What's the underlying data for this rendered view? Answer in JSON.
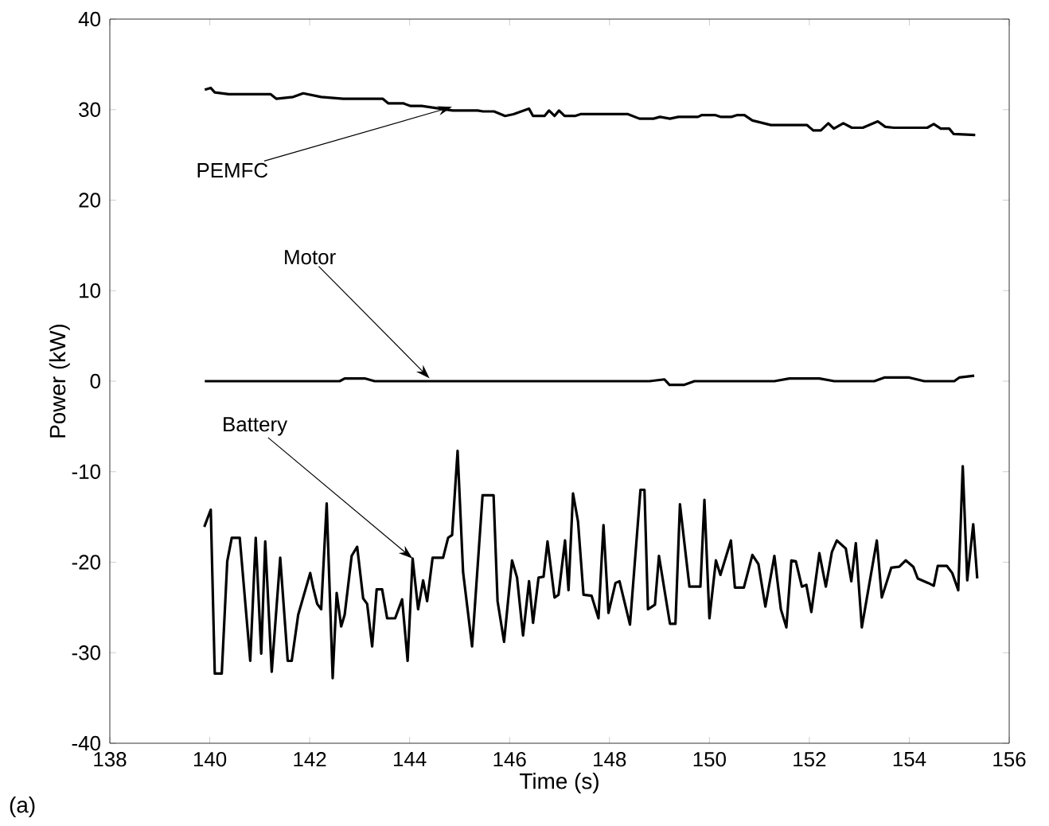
{
  "chart_data": {
    "type": "line",
    "xlabel": "Time (s)",
    "ylabel": "Power (kW)",
    "xlim": [
      138,
      156
    ],
    "ylim": [
      -40,
      40
    ],
    "xticks": [
      138,
      140,
      142,
      144,
      146,
      148,
      150,
      152,
      154,
      156
    ],
    "yticks": [
      -40,
      -30,
      -20,
      -10,
      0,
      10,
      20,
      30,
      40
    ],
    "marker": "none",
    "line_style": "solid",
    "series": [
      {
        "color": "#000000",
        "x": [
          139.9,
          140.02,
          140.1,
          140.38,
          141.22,
          141.33,
          141.67,
          141.87,
          142.23,
          142.67,
          143.46,
          143.57,
          143.87,
          144.02,
          144.24,
          144.86,
          145.36,
          145.47,
          145.69,
          145.91,
          146.08,
          146.39,
          146.47,
          146.7,
          146.79,
          146.9,
          146.99,
          147.1,
          147.31,
          147.42,
          148.37,
          148.6,
          148.88,
          149.01,
          149.21,
          149.38,
          149.77,
          149.85,
          150.11,
          150.22,
          150.44,
          150.56,
          150.7,
          150.86,
          151.23,
          151.95,
          152.08,
          152.23,
          152.38,
          152.49,
          152.68,
          152.85,
          153.07,
          153.37,
          153.52,
          153.69,
          154.36,
          154.49,
          154.63,
          154.8,
          154.89,
          155.32
        ],
        "values": [
          32.2,
          32.4,
          31.9,
          31.7,
          31.7,
          31.2,
          31.4,
          31.8,
          31.4,
          31.2,
          31.2,
          30.7,
          30.7,
          30.4,
          30.4,
          29.9,
          29.9,
          29.8,
          29.8,
          29.3,
          29.5,
          30.1,
          29.3,
          29.3,
          29.9,
          29.3,
          29.9,
          29.3,
          29.3,
          29.5,
          29.5,
          29.0,
          29.0,
          29.2,
          29.0,
          29.2,
          29.2,
          29.4,
          29.4,
          29.2,
          29.2,
          29.4,
          29.4,
          28.8,
          28.3,
          28.3,
          27.7,
          27.7,
          28.5,
          27.9,
          28.5,
          28.0,
          28.0,
          28.7,
          28.1,
          28.0,
          28.0,
          28.4,
          27.9,
          27.9,
          27.3,
          27.2
        ]
      },
      {
        "color": "#000000",
        "x": [
          139.9,
          142.6,
          142.7,
          143.1,
          143.3,
          148.8,
          149.1,
          149.2,
          149.5,
          149.7,
          151.3,
          151.6,
          152.2,
          152.5,
          153.3,
          153.5,
          154.0,
          154.3,
          154.9,
          155.0,
          155.3
        ],
        "values": [
          0,
          0,
          0.3,
          0.3,
          0,
          0,
          0.2,
          -0.4,
          -0.4,
          0,
          0,
          0.3,
          0.3,
          0,
          0,
          0.4,
          0.4,
          0,
          0,
          0.4,
          0.6
        ]
      },
      {
        "color": "#000000",
        "x": [
          139.89,
          140.02,
          140.1,
          140.24,
          140.35,
          140.44,
          140.6,
          140.81,
          140.92,
          141.03,
          141.11,
          141.24,
          141.41,
          141.56,
          141.64,
          141.77,
          142.01,
          142.07,
          142.15,
          142.23,
          142.34,
          142.46,
          142.54,
          142.63,
          142.7,
          142.84,
          142.95,
          143.07,
          143.15,
          143.25,
          143.34,
          143.45,
          143.55,
          143.71,
          143.85,
          143.96,
          144.06,
          144.17,
          144.27,
          144.35,
          144.46,
          144.67,
          144.77,
          144.85,
          144.96,
          145.07,
          145.25,
          145.46,
          145.68,
          145.76,
          145.89,
          146.05,
          146.15,
          146.27,
          146.39,
          146.47,
          146.58,
          146.68,
          146.76,
          146.9,
          146.98,
          147.11,
          147.18,
          147.27,
          147.37,
          147.48,
          147.64,
          147.78,
          147.88,
          147.98,
          148.12,
          148.2,
          148.41,
          148.62,
          148.7,
          148.77,
          148.91,
          148.99,
          149.21,
          149.32,
          149.41,
          149.6,
          149.82,
          149.9,
          150.0,
          150.13,
          150.22,
          150.43,
          150.51,
          150.69,
          150.86,
          150.98,
          151.12,
          151.3,
          151.43,
          151.54,
          151.64,
          151.73,
          151.85,
          151.94,
          152.04,
          152.2,
          152.33,
          152.45,
          152.55,
          152.73,
          152.84,
          152.93,
          153.05,
          153.35,
          153.45,
          153.64,
          153.8,
          153.93,
          154.08,
          154.17,
          154.38,
          154.49,
          154.57,
          154.75,
          154.86,
          154.98,
          155.07,
          155.16,
          155.28,
          155.36
        ],
        "values": [
          -16.1,
          -14.2,
          -32.3,
          -32.3,
          -19.9,
          -17.3,
          -17.3,
          -30.9,
          -17.3,
          -30.1,
          -17.7,
          -32.1,
          -19.5,
          -30.9,
          -30.9,
          -25.8,
          -21.2,
          -22.8,
          -24.6,
          -25.2,
          -13.5,
          -32.8,
          -23.4,
          -27.1,
          -25.8,
          -19.3,
          -18.3,
          -24.0,
          -24.6,
          -29.3,
          -23.0,
          -23.0,
          -26.2,
          -26.2,
          -24.1,
          -30.9,
          -19.6,
          -25.2,
          -22.0,
          -24.3,
          -19.5,
          -19.5,
          -17.3,
          -17.0,
          -7.7,
          -21.1,
          -29.3,
          -12.6,
          -12.6,
          -24.3,
          -28.8,
          -19.8,
          -21.7,
          -28.1,
          -22.1,
          -26.7,
          -21.7,
          -21.6,
          -17.7,
          -23.9,
          -23.6,
          -17.6,
          -23.1,
          -12.4,
          -15.5,
          -23.6,
          -23.7,
          -26.2,
          -15.9,
          -25.6,
          -22.3,
          -22.1,
          -26.9,
          -12.0,
          -12.0,
          -25.2,
          -24.7,
          -19.3,
          -26.8,
          -26.8,
          -13.6,
          -22.7,
          -22.7,
          -13.1,
          -26.2,
          -19.8,
          -21.4,
          -17.6,
          -22.8,
          -22.8,
          -19.2,
          -20.2,
          -24.9,
          -19.3,
          -25.2,
          -27.2,
          -19.8,
          -19.9,
          -22.7,
          -22.5,
          -25.5,
          -19.0,
          -22.7,
          -18.9,
          -17.6,
          -18.5,
          -22.1,
          -17.9,
          -27.2,
          -17.6,
          -23.9,
          -20.6,
          -20.5,
          -19.8,
          -20.5,
          -21.8,
          -22.3,
          -22.6,
          -20.4,
          -20.4,
          -21.2,
          -23.1,
          -9.4,
          -22.0,
          -15.8,
          -21.8
        ]
      }
    ],
    "annotations": [
      {
        "text": "PEMFC",
        "x": 144.85,
        "y": 30.3
      },
      {
        "text": "Motor",
        "x": 144.4,
        "y": 0.3
      },
      {
        "text": "Battery",
        "x": 144.06,
        "y": -19.6
      },
      "(a)"
    ]
  }
}
